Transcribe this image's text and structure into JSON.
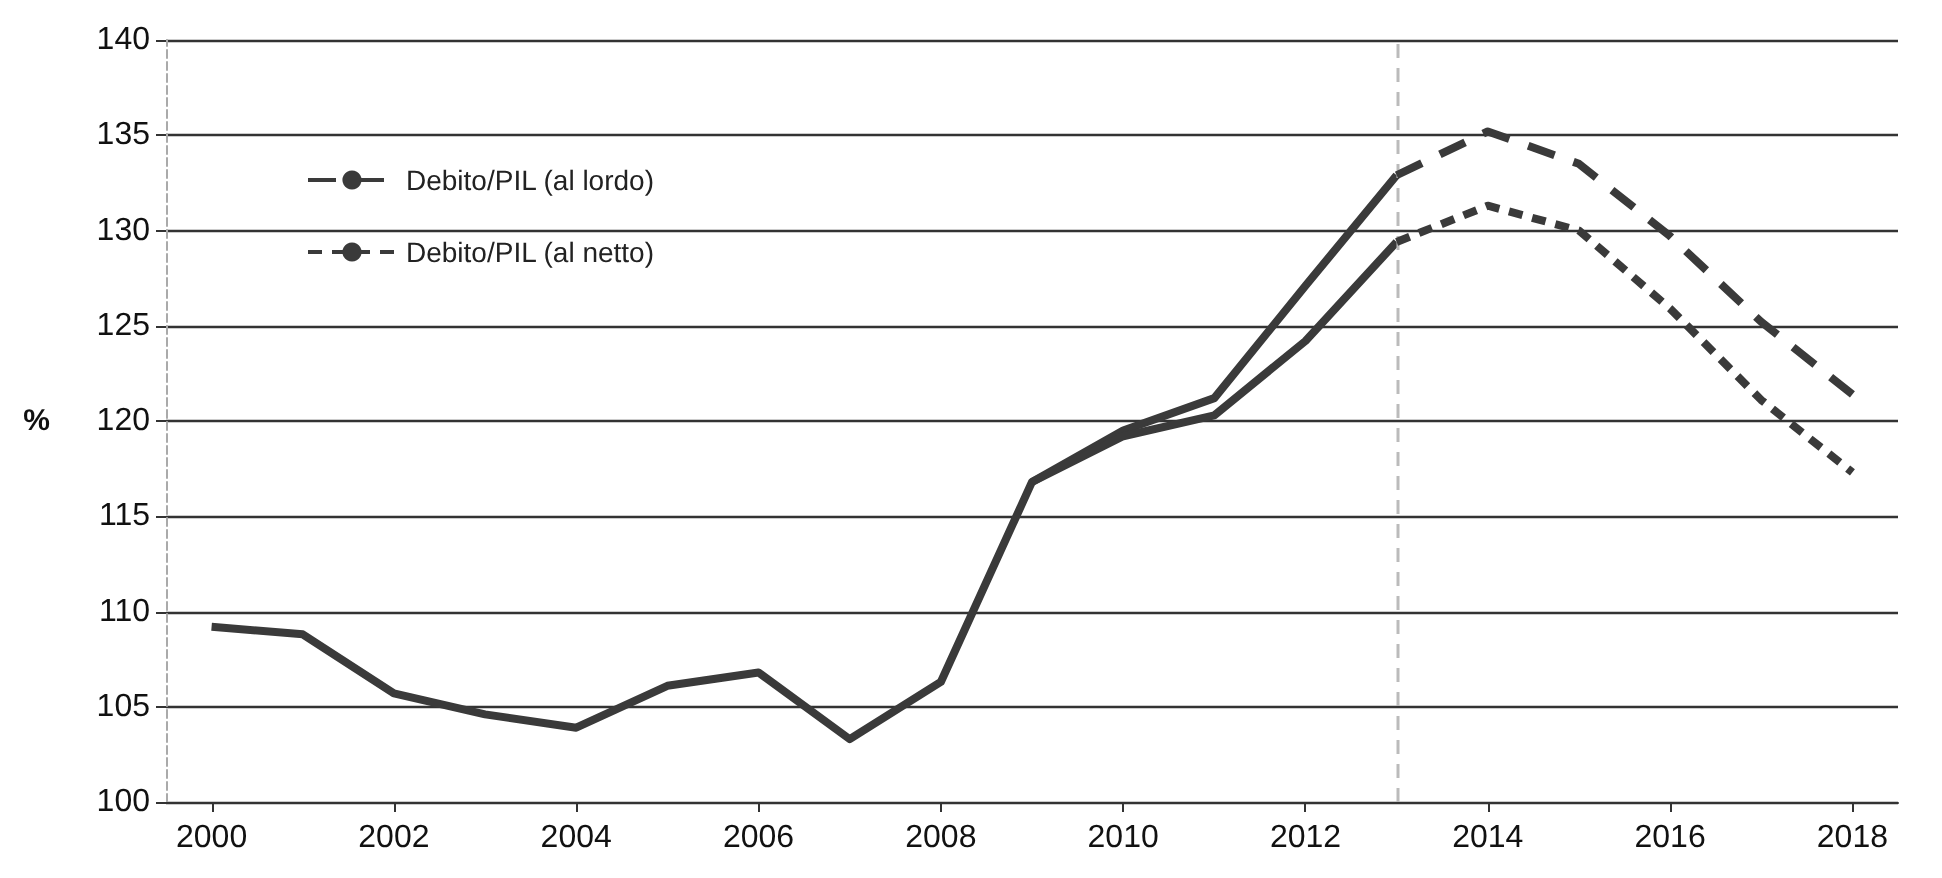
{
  "chart_data": {
    "type": "line",
    "ylabel": "%",
    "xlim": [
      1999.5,
      2018.5
    ],
    "xticks": [
      2000,
      2002,
      2004,
      2006,
      2008,
      2010,
      2012,
      2014,
      2016,
      2018
    ],
    "ylim": [
      100,
      140
    ],
    "yticks": [
      100,
      105,
      110,
      115,
      120,
      125,
      130,
      135,
      140
    ],
    "grid": "y",
    "legend": "top left",
    "marker": "none",
    "series": [
      {
        "color": "#3a3a3a",
        "line_style": "solid",
        "x": [
          2000,
          2001,
          2002,
          2003,
          2004,
          2005,
          2006,
          2007,
          2008,
          2009,
          2010,
          2011,
          2012,
          2013
        ],
        "values": [
          109.2,
          108.8,
          105.7,
          104.6,
          103.9,
          106.1,
          106.8,
          103.3,
          106.3,
          116.8,
          119.5,
          121.2,
          127.1,
          132.9
        ]
      },
      {
        "color": "#3a3a3a",
        "line_style": "solid",
        "x": [
          2009,
          2010,
          2011,
          2012,
          2013
        ],
        "values": [
          116.8,
          119.2,
          120.3,
          124.2,
          129.4
        ]
      },
      {
        "name": "Debito/PIL (al lordo)",
        "color": "#3a3a3a",
        "line_style": "dashed",
        "x": [
          2013,
          2014,
          2015,
          2016,
          2017,
          2018
        ],
        "values": [
          132.9,
          135.2,
          133.5,
          129.7,
          125.2,
          121.4
        ]
      },
      {
        "name": "Debito/PIL (al netto)",
        "color": "#3a3a3a",
        "line_style": "dotted",
        "x": [
          2013,
          2014,
          2015,
          2016,
          2017,
          2018
        ],
        "values": [
          129.4,
          131.3,
          130.0,
          125.9,
          121.1,
          117.3
        ]
      }
    ],
    "ref_lines": [
      {
        "axis": "x",
        "value": 2013,
        "color": "#bbbbbb",
        "line_style": "dotted"
      }
    ]
  }
}
